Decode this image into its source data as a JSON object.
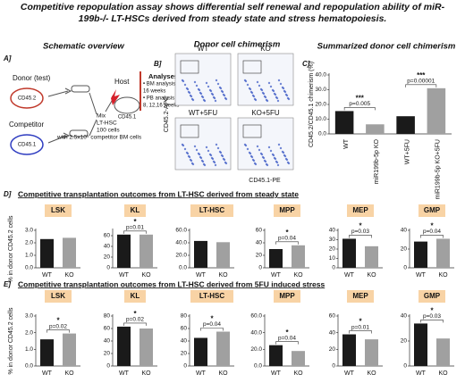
{
  "title": "Competitive repopulation assay shows differential self renewal and repopulation ability of miR-199b-/- LT-HSCs derived from steady state and stress hematopoiesis.",
  "panel_a": {
    "label": "A]",
    "heading": "Schematic overview",
    "donor": "Donor (test)",
    "donor_marker": "CD45.2",
    "competitor": "Competitor",
    "competitor_marker": "CD45.1",
    "host": "Host",
    "host_marker": "CD45.1",
    "mix": [
      "Mix",
      "LT-HSC",
      "100 cells",
      "with 2.5x10⁵ competitor BM cells"
    ],
    "analyses": [
      "Analyses",
      "• BM analysis in",
      "16 weeks",
      "• PB analysis in",
      "8, 12,16 weeks"
    ]
  },
  "panel_b": {
    "label": "B]",
    "heading": "Donor cell chimerism",
    "plots": [
      "WT",
      "KO",
      "WT+5FU",
      "KO+5FU"
    ],
    "ylabel": "CD45.2-APC",
    "xlabel": "CD45.1-PE"
  },
  "panel_d": {
    "label": "D]",
    "heading": "Competitive transplantation outcomes from LT-HSC derived from steady state"
  },
  "panel_e": {
    "label": "E]",
    "heading": "Competitive transplantation outcomes from LT-HSC derived from 5FU induced stress"
  },
  "chart_data": [
    {
      "type": "bar",
      "label": "C]",
      "title": "Summarized donor cell chimerism",
      "ylabel": "CD45.2/CD45.1 chimerism (%)",
      "categories": [
        "WT",
        "miR199b-5p KO",
        "WT+5FU",
        "miR199b-5p KO+5FU"
      ],
      "values": [
        15.5,
        6.5,
        12,
        31
      ],
      "colors": [
        "#1a1a1a",
        "#a0a0a0",
        "#1a1a1a",
        "#a0a0a0"
      ],
      "ylim": [
        0,
        40
      ],
      "yticks": [
        {
          "value": 0,
          "label": "0.0"
        },
        {
          "value": 10,
          "label": "10.0"
        },
        {
          "value": 20,
          "label": "20.0"
        },
        {
          "value": 30,
          "label": "30.0"
        },
        {
          "value": 40,
          "label": "40.0"
        }
      ],
      "annotations": [
        "***",
        "p=0.005",
        "***",
        "p=0.00001"
      ]
    },
    {
      "type": "bar",
      "title": "LSK",
      "ylabel": "% in donor CD45.2 cells",
      "categories": [
        "WT",
        "KO"
      ],
      "values": [
        2.3,
        2.4
      ],
      "colors": [
        "#1a1a1a",
        "#a0a0a0"
      ],
      "ylim": [
        0,
        3
      ],
      "yticks": [
        {
          "value": 0,
          "label": "0.0"
        },
        {
          "value": 1,
          "label": "1.0"
        },
        {
          "value": 2,
          "label": "2.0"
        },
        {
          "value": 3,
          "label": "3.0"
        }
      ],
      "annotations": []
    },
    {
      "type": "bar",
      "title": "KL",
      "categories": [
        "WT",
        "KO"
      ],
      "values": [
        62,
        62
      ],
      "colors": [
        "#1a1a1a",
        "#a0a0a0"
      ],
      "ylim": [
        0,
        70
      ],
      "yticks": [
        0,
        20,
        40,
        60
      ],
      "annotations": [
        "*",
        "p=0.01"
      ]
    },
    {
      "type": "bar",
      "title": "LT-HSC",
      "categories": [
        "WT",
        "KO"
      ],
      "values": [
        43,
        41
      ],
      "colors": [
        "#1a1a1a",
        "#a0a0a0"
      ],
      "ylim": [
        0,
        60
      ],
      "yticks": [
        {
          "value": 0,
          "label": "0.0"
        },
        {
          "value": 20,
          "label": "20.0"
        },
        {
          "value": 40,
          "label": "40.0"
        },
        {
          "value": 60,
          "label": "60.0"
        }
      ],
      "annotations": []
    },
    {
      "type": "bar",
      "title": "MPP",
      "categories": [
        "WT",
        "KO"
      ],
      "values": [
        30,
        36
      ],
      "colors": [
        "#1a1a1a",
        "#a0a0a0"
      ],
      "ylim": [
        0,
        60
      ],
      "yticks": [
        0,
        20,
        40,
        60
      ],
      "annotations": [
        "*",
        "p=0.04"
      ]
    },
    {
      "type": "bar",
      "title": "MEP",
      "categories": [
        "WT",
        "KO"
      ],
      "values": [
        31,
        23
      ],
      "colors": [
        "#1a1a1a",
        "#a0a0a0"
      ],
      "ylim": [
        0,
        40
      ],
      "yticks": [
        0,
        10,
        20,
        30,
        40
      ],
      "annotations": [
        "*",
        "p=0.03"
      ]
    },
    {
      "type": "bar",
      "title": "GMP",
      "categories": [
        "WT",
        "KO"
      ],
      "values": [
        28,
        31
      ],
      "colors": [
        "#1a1a1a",
        "#a0a0a0"
      ],
      "ylim": [
        0,
        40
      ],
      "yticks": [
        0,
        20,
        40
      ],
      "annotations": [
        "*",
        "p=0.04"
      ]
    },
    {
      "type": "bar",
      "title": "LSK",
      "ylabel": "% in donor CD45.2 cells",
      "categories": [
        "WT",
        "KO"
      ],
      "values": [
        1.6,
        1.95
      ],
      "colors": [
        "#1a1a1a",
        "#a0a0a0"
      ],
      "ylim": [
        0,
        3
      ],
      "yticks": [
        {
          "value": 0,
          "label": "0.0"
        },
        {
          "value": 1,
          "label": "1.0"
        },
        {
          "value": 2,
          "label": "2.0"
        },
        {
          "value": 3,
          "label": "3.0"
        }
      ],
      "annotations": [
        "*",
        "p=0.02"
      ]
    },
    {
      "type": "bar",
      "title": "KL",
      "categories": [
        "WT",
        "KO"
      ],
      "values": [
        63,
        60
      ],
      "colors": [
        "#1a1a1a",
        "#a0a0a0"
      ],
      "ylim": [
        0,
        80
      ],
      "yticks": [
        0,
        20,
        40,
        60,
        80
      ],
      "annotations": [
        "*",
        "p=0.02"
      ]
    },
    {
      "type": "bar",
      "title": "LT-HSC",
      "categories": [
        "WT",
        "KO"
      ],
      "values": [
        45,
        55
      ],
      "colors": [
        "#1a1a1a",
        "#a0a0a0"
      ],
      "ylim": [
        0,
        80
      ],
      "yticks": [
        0,
        20,
        40,
        60,
        80
      ],
      "annotations": [
        "*",
        "p=0.04"
      ]
    },
    {
      "type": "bar",
      "title": "MPP",
      "categories": [
        "WT",
        "KO"
      ],
      "values": [
        25,
        18
      ],
      "colors": [
        "#1a1a1a",
        "#a0a0a0"
      ],
      "ylim": [
        0,
        60
      ],
      "yticks": [
        {
          "value": 0,
          "label": "0.0"
        },
        {
          "value": 20,
          "label": "20.0"
        },
        {
          "value": 40,
          "label": "40.0"
        },
        {
          "value": 60,
          "label": "60.0"
        }
      ],
      "annotations": [
        "*",
        "p=0.04"
      ]
    },
    {
      "type": "bar",
      "title": "MEP",
      "categories": [
        "WT",
        "KO"
      ],
      "values": [
        38,
        32
      ],
      "colors": [
        "#1a1a1a",
        "#a0a0a0"
      ],
      "ylim": [
        0,
        60
      ],
      "yticks": [
        0,
        20,
        40,
        60
      ],
      "annotations": [
        "*",
        "p=0.01"
      ]
    },
    {
      "type": "bar",
      "title": "GMP",
      "categories": [
        "WT",
        "KO"
      ],
      "values": [
        34,
        22
      ],
      "colors": [
        "#1a1a1a",
        "#a0a0a0"
      ],
      "ylim": [
        0,
        40
      ],
      "yticks": [
        0,
        20,
        40
      ],
      "annotations": [
        "*",
        "p=0.03"
      ]
    }
  ]
}
